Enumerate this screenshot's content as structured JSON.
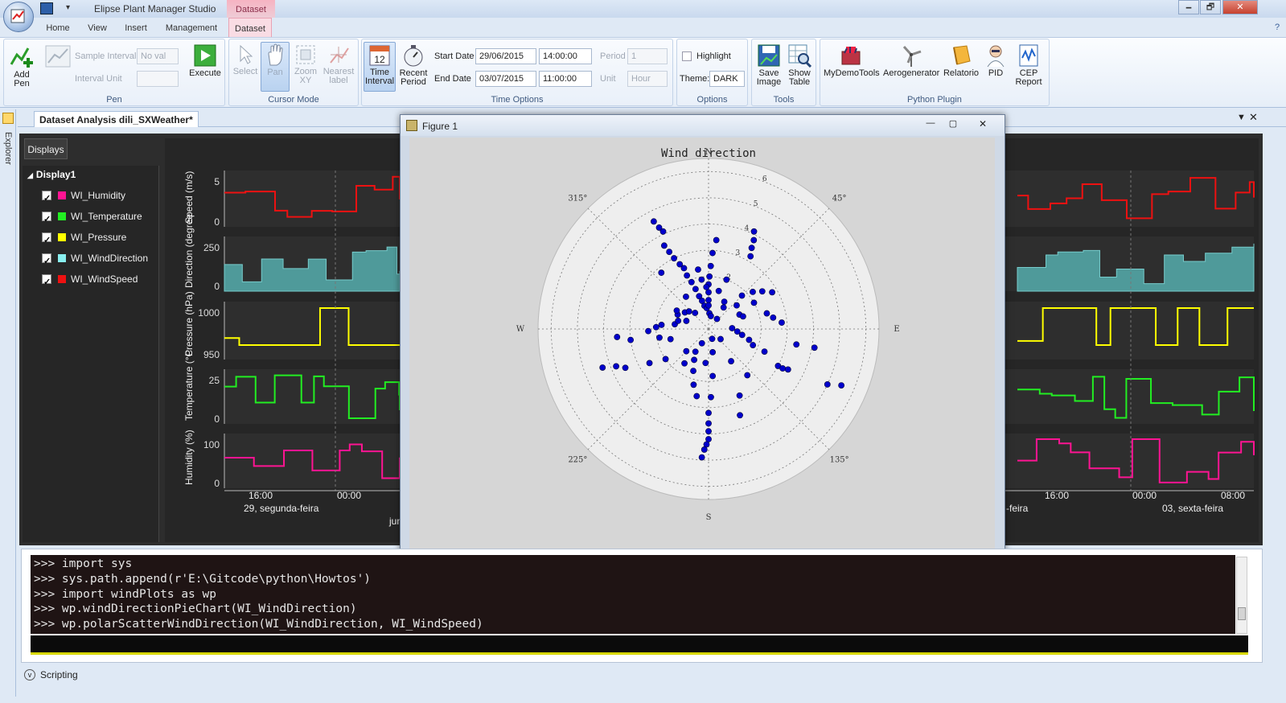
{
  "app": {
    "title": "Elipse Plant Manager Studio",
    "context_tab": "Dataset",
    "win_min": "🗕",
    "win_max": "🗗",
    "win_close": "✕"
  },
  "ribbon": {
    "tabs": [
      "Home",
      "View",
      "Insert",
      "Management",
      "Dataset"
    ],
    "pen": {
      "add_pen": "Add Pen",
      "sample_interval": "Sample Interval",
      "sample_interval_value": "No val",
      "interval_unit": "Interval Unit",
      "execute": "Execute",
      "group": "Pen"
    },
    "cursor": {
      "select": "Select",
      "pan": "Pan",
      "zoom": "Zoom XY",
      "nearest": "Nearest label",
      "group": "Cursor Mode"
    },
    "time": {
      "time_interval": "Time Interval",
      "recent_period": "Recent Period",
      "start_label": "Start Date",
      "start_date": "29/06/2015",
      "start_time": "14:00:00",
      "end_label": "End Date",
      "end_date": "03/07/2015",
      "end_time": "11:00:00",
      "period_label": "Period",
      "period_value": "1",
      "unit_label": "Unit",
      "unit_value": "Hour",
      "group": "Time Options"
    },
    "options": {
      "highlight": "Highlight",
      "theme_label": "Theme:",
      "theme_value": "DARK",
      "group": "Options"
    },
    "tools": {
      "save_image": "Save Image",
      "show_table": "Show Table",
      "group": "Tools"
    },
    "plugin": {
      "items": [
        "MyDemoTools",
        "Aerogenerator",
        "Relatorio",
        "PID",
        "CEP Report"
      ],
      "group": "Python Plugin"
    }
  },
  "document": {
    "tab": "Dataset Analysis dili_SXWeather*",
    "explorer": "Explorer"
  },
  "displays": {
    "header": "Displays",
    "root": "Display1",
    "items": [
      {
        "label": "WI_Humidity",
        "color": "#ff1493"
      },
      {
        "label": "WI_Temperature",
        "color": "#22ee22"
      },
      {
        "label": "WI_Pressure",
        "color": "#ffff00"
      },
      {
        "label": "WI_WindDirection",
        "color": "#88eeee"
      },
      {
        "label": "WI_WindSpeed",
        "color": "#ee1111"
      }
    ]
  },
  "plots": {
    "ylabels": [
      "Speed (m/s)",
      "Direction (degree",
      "Pressure (hPa)",
      "Temperature (°C",
      "Humidity (%)"
    ],
    "ticks": {
      "speed": [
        "5",
        "0"
      ],
      "direction": [
        "250",
        "0"
      ],
      "pressure": [
        "1000",
        "950"
      ],
      "temperature": [
        "25",
        "0"
      ],
      "humidity": [
        "100",
        "0"
      ]
    },
    "x_left": [
      "16:00",
      "00:00"
    ],
    "date_left": "29, segunda-feira",
    "month_left": "jun",
    "x_right": [
      "16:00",
      "00:00",
      "08:00"
    ],
    "date_mid": "-feira",
    "date_right": "03, sexta-feira"
  },
  "figure": {
    "title": "Figure 1",
    "min": "—",
    "max": "▢",
    "close": "✕",
    "plot_title": "Wind direction",
    "compass": {
      "n": "N",
      "s": "S",
      "e": "E",
      "w": "W"
    },
    "angles": {
      "ne": "45°",
      "nw": "315°",
      "se": "135°",
      "sw": "225°"
    },
    "radial": [
      "2",
      "3",
      "4",
      "5",
      "6"
    ]
  },
  "chart_data": {
    "type": "scatter",
    "projection": "polar",
    "title": "Wind direction",
    "theta_labels": [
      "N",
      "E",
      "S",
      "W",
      "45°",
      "135°",
      "225°",
      "315°"
    ],
    "r_ticks": [
      2,
      3,
      4,
      5,
      6
    ],
    "rlim": [
      0,
      6.5
    ],
    "marker_color": "#0000cc",
    "points": [
      {
        "theta": 333,
        "r": 4.6
      },
      {
        "theta": 334,
        "r": 4.3
      },
      {
        "theta": 335,
        "r": 4.1
      },
      {
        "theta": 332,
        "r": 3.6
      },
      {
        "theta": 333,
        "r": 3.3
      },
      {
        "theta": 334,
        "r": 3.0
      },
      {
        "theta": 336,
        "r": 2.7
      },
      {
        "theta": 338,
        "r": 2.5
      },
      {
        "theta": 338,
        "r": 2.2
      },
      {
        "theta": 340,
        "r": 1.9
      },
      {
        "theta": 342,
        "r": 1.6
      },
      {
        "theta": 344,
        "r": 1.3
      },
      {
        "theta": 347,
        "r": 1.1
      },
      {
        "theta": 350,
        "r": 0.9
      },
      {
        "theta": 355,
        "r": 0.8
      },
      {
        "theta": 5,
        "r": 3.4
      },
      {
        "theta": 3,
        "r": 2.9
      },
      {
        "theta": 2,
        "r": 2.4
      },
      {
        "theta": 1,
        "r": 2.0
      },
      {
        "theta": 0,
        "r": 1.7
      },
      {
        "theta": 0,
        "r": 1.4
      },
      {
        "theta": 0,
        "r": 1.1
      },
      {
        "theta": 0,
        "r": 0.9
      },
      {
        "theta": 3,
        "r": 0.6
      },
      {
        "theta": 350,
        "r": 2.3
      },
      {
        "theta": 352,
        "r": 1.9
      },
      {
        "theta": 357,
        "r": 1.6
      },
      {
        "theta": 25,
        "r": 4.1
      },
      {
        "theta": 27,
        "r": 3.8
      },
      {
        "theta": 28,
        "r": 3.5
      },
      {
        "theta": 30,
        "r": 3.2
      },
      {
        "theta": 20,
        "r": 2.0
      },
      {
        "theta": 30,
        "r": 1.2
      },
      {
        "theta": 35,
        "r": 1.0
      },
      {
        "theta": 45,
        "r": 1.8
      },
      {
        "theta": 50,
        "r": 2.2
      },
      {
        "theta": 55,
        "r": 2.5
      },
      {
        "theta": 60,
        "r": 2.0
      },
      {
        "theta": 65,
        "r": 1.3
      },
      {
        "theta": 70,
        "r": 1.4
      },
      {
        "theta": 75,
        "r": 2.3
      },
      {
        "theta": 80,
        "r": 2.5
      },
      {
        "theta": 85,
        "r": 2.8
      },
      {
        "theta": 88,
        "r": 0.9
      },
      {
        "theta": 95,
        "r": 1.1
      },
      {
        "theta": 100,
        "r": 1.3
      },
      {
        "theta": 105,
        "r": 1.6
      },
      {
        "theta": 110,
        "r": 1.8
      },
      {
        "theta": 112,
        "r": 2.3
      },
      {
        "theta": 118,
        "r": 3.0
      },
      {
        "theta": 118,
        "r": 3.2
      },
      {
        "theta": 117,
        "r": 3.4
      },
      {
        "theta": 115,
        "r": 5.0
      },
      {
        "theta": 113,
        "r": 5.5
      },
      {
        "theta": 100,
        "r": 4.1
      },
      {
        "theta": 145,
        "r": 1.5
      },
      {
        "theta": 155,
        "r": 2.8
      },
      {
        "theta": 160,
        "r": 3.5
      },
      {
        "theta": 175,
        "r": 1.8
      },
      {
        "theta": 178,
        "r": 2.6
      },
      {
        "theta": 180,
        "r": 3.2
      },
      {
        "theta": 180,
        "r": 3.6
      },
      {
        "theta": 180,
        "r": 3.9
      },
      {
        "theta": 180,
        "r": 4.2
      },
      {
        "theta": 181,
        "r": 4.4
      },
      {
        "theta": 182,
        "r": 4.6
      },
      {
        "theta": 183,
        "r": 4.9
      },
      {
        "theta": 190,
        "r": 2.6
      },
      {
        "theta": 195,
        "r": 2.2
      },
      {
        "theta": 200,
        "r": 1.7
      },
      {
        "theta": 205,
        "r": 1.3
      },
      {
        "theta": 210,
        "r": 1.0
      },
      {
        "theta": 215,
        "r": 1.6
      },
      {
        "theta": 225,
        "r": 1.2
      },
      {
        "theta": 235,
        "r": 2.0
      },
      {
        "theta": 240,
        "r": 2.6
      },
      {
        "theta": 245,
        "r": 3.5
      },
      {
        "theta": 250,
        "r": 4.3
      },
      {
        "theta": 248,
        "r": 3.8
      },
      {
        "theta": 255,
        "r": 1.5
      },
      {
        "theta": 260,
        "r": 1.9
      },
      {
        "theta": 262,
        "r": 3.0
      },
      {
        "theta": 265,
        "r": 3.5
      },
      {
        "theta": 268,
        "r": 2.3
      },
      {
        "theta": 272,
        "r": 2.0
      },
      {
        "theta": 275,
        "r": 1.8
      },
      {
        "theta": 278,
        "r": 1.3
      },
      {
        "theta": 285,
        "r": 1.2
      },
      {
        "theta": 290,
        "r": 0.9
      },
      {
        "theta": 295,
        "r": 1.3
      },
      {
        "theta": 300,
        "r": 1.4
      },
      {
        "theta": 305,
        "r": 1.1
      },
      {
        "theta": 312,
        "r": 1.0
      },
      {
        "theta": 320,
        "r": 0.8
      },
      {
        "theta": 325,
        "r": 1.5
      },
      {
        "theta": 10,
        "r": 0.5
      },
      {
        "theta": 40,
        "r": 0.5
      },
      {
        "theta": 130,
        "r": 0.6
      },
      {
        "theta": 160,
        "r": 0.4
      },
      {
        "theta": 205,
        "r": 0.6
      },
      {
        "theta": 170,
        "r": 0.9
      },
      {
        "theta": 185,
        "r": 1.3
      },
      {
        "theta": 140,
        "r": 2.3
      },
      {
        "theta": 100,
        "r": 3.4
      },
      {
        "theta": 60,
        "r": 2.8
      },
      {
        "theta": 50,
        "r": 1.4
      },
      {
        "theta": 15,
        "r": 1.5
      },
      {
        "theta": 320,
        "r": 2.8
      }
    ]
  },
  "console": {
    "lines": [
      ">>> import sys",
      ">>> sys.path.append(r'E:\\Gitcode\\python\\Howtos')",
      ">>> import windPlots as wp",
      ">>> wp.windDirectionPieChart(WI_WindDirection)",
      ">>> wp.polarScatterWindDirection(WI_WindDirection, WI_WindSpeed)"
    ],
    "scripting": "Scripting"
  }
}
